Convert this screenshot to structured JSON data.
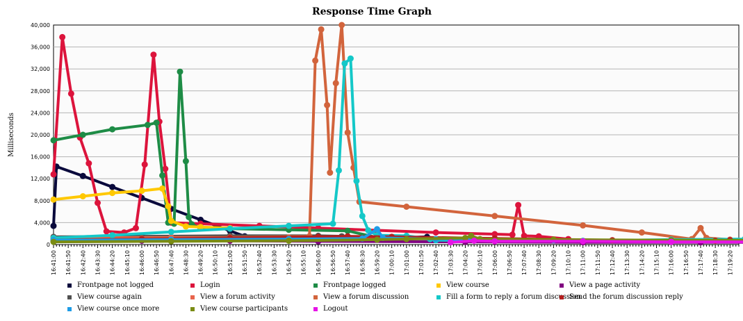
{
  "chart_data": {
    "type": "line",
    "title": "Response Time Graph",
    "ylabel": "Milliseconds",
    "xlabel": "",
    "ylim": [
      0,
      40000
    ],
    "yticks": [
      "0",
      "4,000",
      "8,000",
      "12,000",
      "16,000",
      "20,000",
      "24,000",
      "28,000",
      "32,000",
      "36,000",
      "40,000"
    ],
    "xticks": [
      "16:41:00",
      "16:41:50",
      "16:42:40",
      "16:43:30",
      "16:44:20",
      "16:45:10",
      "16:46:00",
      "16:46:50",
      "16:47:40",
      "16:48:30",
      "16:49:20",
      "16:50:10",
      "16:51:00",
      "16:51:50",
      "16:52:40",
      "16:53:30",
      "16:54:20",
      "16:55:10",
      "16:56:00",
      "16:56:50",
      "16:57:40",
      "16:58:30",
      "16:59:20",
      "17:00:10",
      "17:01:00",
      "17:01:50",
      "17:02:40",
      "17:03:30",
      "17:04:20",
      "17:05:10",
      "17:06:00",
      "17:06:50",
      "17:07:40",
      "17:08:30",
      "17:09:20",
      "17:10:10",
      "17:11:00",
      "17:11:50",
      "17:12:40",
      "17:13:30",
      "17:14:20",
      "17:15:10",
      "17:16:00",
      "17:16:50",
      "17:17:40",
      "17:18:30",
      "17:19:20"
    ],
    "grid": true,
    "legend_placement": "bottom",
    "series": [
      {
        "name": "Frontpage not logged",
        "color": "#0a0a3c",
        "points": [
          [
            0,
            3400
          ],
          [
            1,
            14200
          ],
          [
            10,
            12500
          ],
          [
            20,
            10500
          ],
          [
            30,
            8500
          ],
          [
            40,
            6500
          ],
          [
            50,
            4500
          ],
          [
            60,
            2500
          ],
          [
            65,
            1500
          ],
          [
            70,
            1000
          ],
          [
            80,
            900
          ],
          [
            90,
            900
          ],
          [
            100,
            1000
          ],
          [
            105,
            1100
          ],
          [
            115,
            1200
          ],
          [
            120,
            1300
          ],
          [
            127,
            1400
          ]
        ]
      },
      {
        "name": "Login",
        "color": "#dc143c",
        "points": [
          [
            0,
            12800
          ],
          [
            3,
            37800
          ],
          [
            6,
            27500
          ],
          [
            9,
            19500
          ],
          [
            12,
            14800
          ],
          [
            15,
            7600
          ],
          [
            18,
            2400
          ],
          [
            24,
            2200
          ],
          [
            28,
            3000
          ],
          [
            31,
            14600
          ],
          [
            34,
            34600
          ],
          [
            36,
            22400
          ],
          [
            38,
            13800
          ],
          [
            40,
            4000
          ],
          [
            50,
            3800
          ],
          [
            70,
            3400
          ],
          [
            90,
            3000
          ],
          [
            110,
            2600
          ],
          [
            130,
            2200
          ],
          [
            150,
            1900
          ],
          [
            156,
            1800
          ],
          [
            158,
            7200
          ],
          [
            160,
            1600
          ],
          [
            165,
            1500
          ],
          [
            175,
            1000
          ]
        ]
      },
      {
        "name": "Frontpage logged",
        "color": "#1e8c46",
        "points": [
          [
            0,
            19000
          ],
          [
            10,
            20000
          ],
          [
            20,
            21000
          ],
          [
            32,
            21800
          ],
          [
            35,
            22200
          ],
          [
            37,
            12600
          ],
          [
            39,
            4000
          ],
          [
            41,
            3800
          ],
          [
            43,
            31500
          ],
          [
            45,
            15200
          ],
          [
            46,
            5000
          ],
          [
            47,
            3700
          ],
          [
            50,
            3000
          ],
          [
            60,
            2900
          ],
          [
            80,
            2700
          ],
          [
            100,
            2500
          ],
          [
            110,
            1300
          ]
        ]
      },
      {
        "name": "View course",
        "color": "#ffc800",
        "points": [
          [
            0,
            8200
          ],
          [
            10,
            8800
          ],
          [
            20,
            9400
          ],
          [
            30,
            9800
          ],
          [
            37,
            10200
          ],
          [
            39,
            7000
          ],
          [
            40,
            4300
          ],
          [
            45,
            3300
          ],
          [
            50,
            3200
          ],
          [
            60,
            3000
          ]
        ]
      },
      {
        "name": "View a page activity",
        "color": "#800080",
        "points": [
          [
            0,
            700
          ],
          [
            30,
            700
          ],
          [
            60,
            700
          ],
          [
            90,
            600
          ],
          [
            140,
            500
          ],
          [
            180,
            400
          ],
          [
            220,
            400
          ],
          [
            250,
            400
          ],
          [
            258,
            400
          ]
        ]
      },
      {
        "name": "View course again",
        "color": "#505050",
        "points": [
          [
            0,
            1400
          ],
          [
            30,
            1500
          ],
          [
            60,
            1600
          ],
          [
            90,
            1600
          ],
          [
            98,
            1500
          ]
        ]
      },
      {
        "name": "View a forum activity",
        "color": "#e8644c",
        "points": [
          [
            0,
            1200
          ],
          [
            40,
            1300
          ],
          [
            80,
            1300
          ],
          [
            110,
            1200
          ],
          [
            150,
            1100
          ]
        ]
      },
      {
        "name": "View a forum discussion",
        "color": "#d2643c",
        "points": [
          [
            0,
            900
          ],
          [
            30,
            1100
          ],
          [
            60,
            1300
          ],
          [
            87,
            1500
          ],
          [
            89,
            33500
          ],
          [
            91,
            39200
          ],
          [
            93,
            25400
          ],
          [
            94,
            13100
          ],
          [
            96,
            29400
          ],
          [
            98,
            40000
          ],
          [
            100,
            20400
          ],
          [
            102,
            14000
          ],
          [
            104,
            7800
          ],
          [
            120,
            6900
          ],
          [
            150,
            5200
          ],
          [
            180,
            3500
          ],
          [
            200,
            2200
          ],
          [
            217,
            1000
          ],
          [
            220,
            3000
          ],
          [
            222,
            1200
          ],
          [
            230,
            900
          ],
          [
            250,
            800
          ],
          [
            258,
            700
          ]
        ]
      },
      {
        "name": "Fill a form to reply a forum discussion",
        "color": "#14c8c8",
        "points": [
          [
            0,
            1200
          ],
          [
            20,
            1700
          ],
          [
            40,
            2300
          ],
          [
            60,
            2900
          ],
          [
            80,
            3400
          ],
          [
            95,
            3800
          ],
          [
            97,
            13500
          ],
          [
            99,
            33000
          ],
          [
            101,
            33900
          ],
          [
            103,
            11600
          ],
          [
            105,
            5200
          ],
          [
            107,
            2600
          ],
          [
            110,
            1700
          ],
          [
            120,
            1600
          ],
          [
            128,
            1000
          ],
          [
            130,
            800
          ],
          [
            150,
            700
          ],
          [
            180,
            700
          ],
          [
            210,
            900
          ],
          [
            235,
            1000
          ],
          [
            240,
            1100
          ],
          [
            245,
            800
          ]
        ]
      },
      {
        "name": "Send the forum discussion reply",
        "color": "#b41e1e",
        "points": [
          [
            0,
            800
          ],
          [
            30,
            1000
          ],
          [
            60,
            1200
          ],
          [
            90,
            1400
          ],
          [
            100,
            1500
          ],
          [
            115,
            1400
          ],
          [
            150,
            1100
          ],
          [
            190,
            800
          ],
          [
            225,
            700
          ],
          [
            230,
            800
          ]
        ]
      },
      {
        "name": "View course once more",
        "color": "#1e9ce6",
        "points": [
          [
            0,
            800
          ],
          [
            40,
            900
          ],
          [
            80,
            1000
          ],
          [
            105,
            1100
          ],
          [
            110,
            2800
          ],
          [
            112,
            1200
          ],
          [
            130,
            1000
          ],
          [
            170,
            800
          ]
        ]
      },
      {
        "name": "View course participants",
        "color": "#7a8c14",
        "points": [
          [
            0,
            500
          ],
          [
            40,
            600
          ],
          [
            80,
            700
          ],
          [
            110,
            900
          ],
          [
            120,
            1000
          ],
          [
            140,
            1200
          ],
          [
            142,
            1600
          ],
          [
            145,
            1000
          ],
          [
            170,
            900
          ],
          [
            210,
            800
          ],
          [
            245,
            800
          ]
        ]
      },
      {
        "name": "Logout",
        "color": "#e614e6",
        "points": [
          [
            135,
            400
          ],
          [
            143,
            700
          ],
          [
            150,
            600
          ],
          [
            180,
            600
          ],
          [
            210,
            500
          ],
          [
            240,
            500
          ],
          [
            258,
            500
          ]
        ]
      }
    ]
  }
}
